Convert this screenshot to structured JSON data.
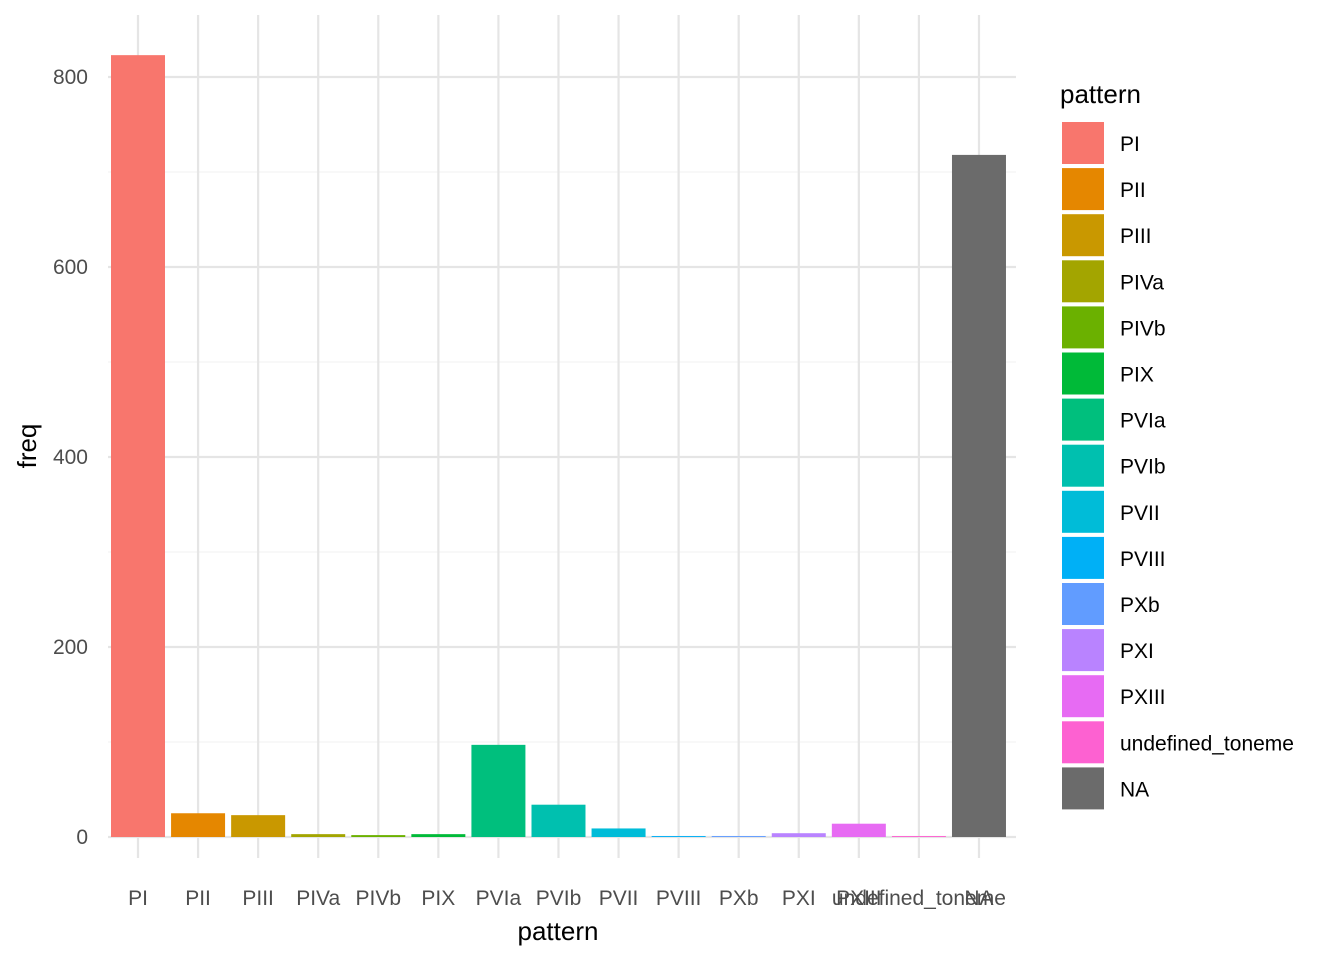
{
  "chart_data": {
    "type": "bar",
    "title": "",
    "xlabel": "pattern",
    "ylabel": "freq",
    "ylim": [
      0,
      840
    ],
    "yticks": [
      0,
      200,
      400,
      600,
      800
    ],
    "grid": true,
    "legend_title": "pattern",
    "legend_position": "right",
    "categories": [
      "PI",
      "PII",
      "PIII",
      "PIVa",
      "PIVb",
      "PIX",
      "PVIa",
      "PVIb",
      "PVII",
      "PVIII",
      "PXb",
      "PXI",
      "PXIII",
      "undefined_toneme",
      "NA"
    ],
    "values": [
      823,
      25,
      23,
      3,
      2,
      3,
      97,
      34,
      9,
      1,
      1,
      4,
      14,
      1,
      718
    ],
    "colors": [
      "#F8766D",
      "#E58700",
      "#C99800",
      "#A3A500",
      "#6BB100",
      "#00BA38",
      "#00BF7D",
      "#00C0AF",
      "#00BCD8",
      "#00B0F6",
      "#619CFF",
      "#B983FF",
      "#E76BF3",
      "#FD61D1",
      "#6B6B6B"
    ]
  }
}
